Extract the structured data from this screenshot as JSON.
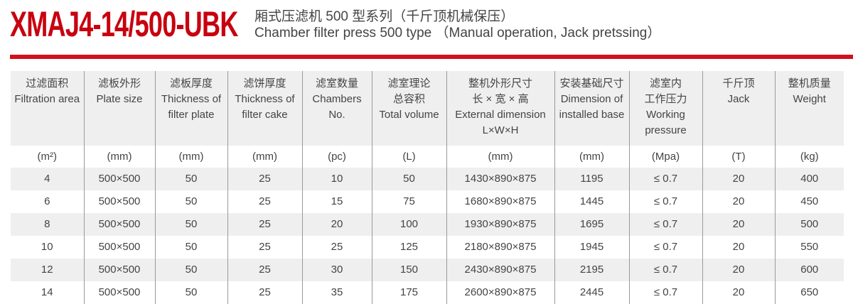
{
  "title": "XMAJ4-14/500-UBK",
  "subtitle_cn": "厢式压滤机 500 型系列（千斤顶机械保压）",
  "subtitle_en": "Chamber filter press 500 type （Manual operation, Jack pretssing）",
  "headers": [
    [
      "过滤面积",
      "Filtration area"
    ],
    [
      "滤板外形",
      "Plate size"
    ],
    [
      "滤板厚度",
      "Thickness of",
      "filter plate"
    ],
    [
      "滤饼厚度",
      "Thickness of",
      "filter cake"
    ],
    [
      "滤室数量",
      "Chambers",
      "No."
    ],
    [
      "滤室理论",
      "总容积",
      "Total volume"
    ],
    [
      "整机外形尺寸",
      "长 × 宽 × 高",
      "External dimension",
      "L×W×H"
    ],
    [
      "安装基础尺寸",
      "Dimension of",
      "installed base"
    ],
    [
      "滤室内",
      "工作压力",
      "Working",
      "pressure"
    ],
    [
      "千斤顶",
      "Jack"
    ],
    [
      "整机质量",
      "Weight"
    ]
  ],
  "units": [
    "(m²)",
    "(mm)",
    "(mm)",
    "(mm)",
    "(pc)",
    "(L)",
    "(mm)",
    "(mm)",
    "(Mpa)",
    "(T)",
    "(kg)"
  ],
  "rows": [
    [
      "4",
      "500×500",
      "50",
      "25",
      "10",
      "50",
      "1430×890×875",
      "1195",
      "≤ 0.7",
      "20",
      "400"
    ],
    [
      "6",
      "500×500",
      "50",
      "25",
      "15",
      "75",
      "1680×890×875",
      "1445",
      "≤ 0.7",
      "20",
      "450"
    ],
    [
      "8",
      "500×500",
      "50",
      "25",
      "20",
      "100",
      "1930×890×875",
      "1695",
      "≤ 0.7",
      "20",
      "500"
    ],
    [
      "10",
      "500×500",
      "50",
      "25",
      "25",
      "125",
      "2180×890×875",
      "1945",
      "≤ 0.7",
      "20",
      "550"
    ],
    [
      "12",
      "500×500",
      "50",
      "25",
      "30",
      "150",
      "2430×890×875",
      "2195",
      "≤ 0.7",
      "20",
      "600"
    ],
    [
      "14",
      "500×500",
      "50",
      "25",
      "35",
      "175",
      "2600×890×875",
      "2445",
      "≤ 0.7",
      "20",
      "650"
    ]
  ],
  "colors": {
    "accent": "#c8000f",
    "stripe": "#efefef"
  }
}
